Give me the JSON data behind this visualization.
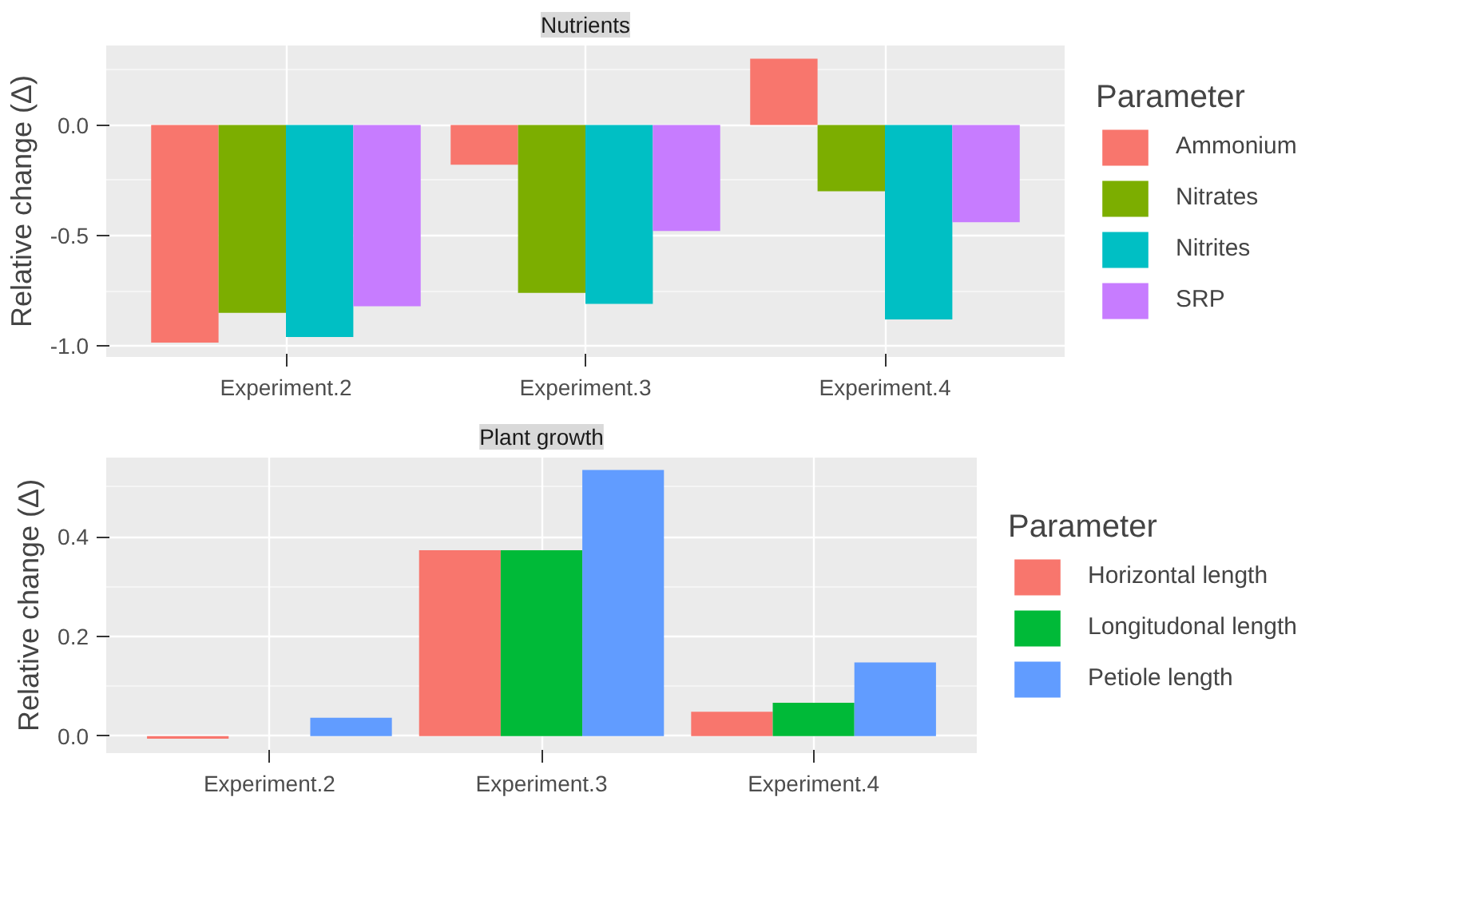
{
  "chart_data": [
    {
      "type": "bar",
      "title": "Nutrients",
      "ylabel": "Relative change (Δ)",
      "legend_title": "Parameter",
      "legend": "right",
      "grid": true,
      "categories": [
        "Experiment.2",
        "Experiment.3",
        "Experiment.4"
      ],
      "ylim": [
        -1.05,
        0.36
      ],
      "yticks": [
        {
          "value": -1.0,
          "label": "-1.0"
        },
        {
          "value": -0.5,
          "label": "-0.5"
        },
        {
          "value": 0.0,
          "label": "0.0"
        }
      ],
      "series": [
        {
          "name": "Ammonium",
          "color": "#f8766d",
          "values": [
            -0.985,
            -0.18,
            0.3
          ]
        },
        {
          "name": "Nitrates",
          "color": "#7cae00",
          "values": [
            -0.85,
            -0.76,
            -0.3
          ]
        },
        {
          "name": "Nitrites",
          "color": "#00bfc4",
          "values": [
            -0.96,
            -0.81,
            -0.88
          ]
        },
        {
          "name": "SRP",
          "color": "#c77cff",
          "values": [
            -0.82,
            -0.48,
            -0.44
          ]
        }
      ]
    },
    {
      "type": "bar",
      "title": "Plant growth",
      "ylabel": "Relative change (Δ)",
      "legend_title": "Parameter",
      "legend": "right",
      "grid": true,
      "categories": [
        "Experiment.2",
        "Experiment.3",
        "Experiment.4"
      ],
      "ylim": [
        -0.034,
        0.559
      ],
      "yticks": [
        {
          "value": 0.0,
          "label": "0.0"
        },
        {
          "value": 0.2,
          "label": "0.2"
        },
        {
          "value": 0.4,
          "label": "0.4"
        }
      ],
      "series": [
        {
          "name": "Horizontal length",
          "color": "#f8766d",
          "values": [
            -0.005,
            0.373,
            0.049
          ]
        },
        {
          "name": "Longitudonal length",
          "color": "#00ba38",
          "values": [
            0.0,
            0.373,
            0.067
          ]
        },
        {
          "name": "Petiole length",
          "color": "#619cff",
          "values": [
            0.037,
            0.534,
            0.148
          ]
        }
      ]
    }
  ]
}
